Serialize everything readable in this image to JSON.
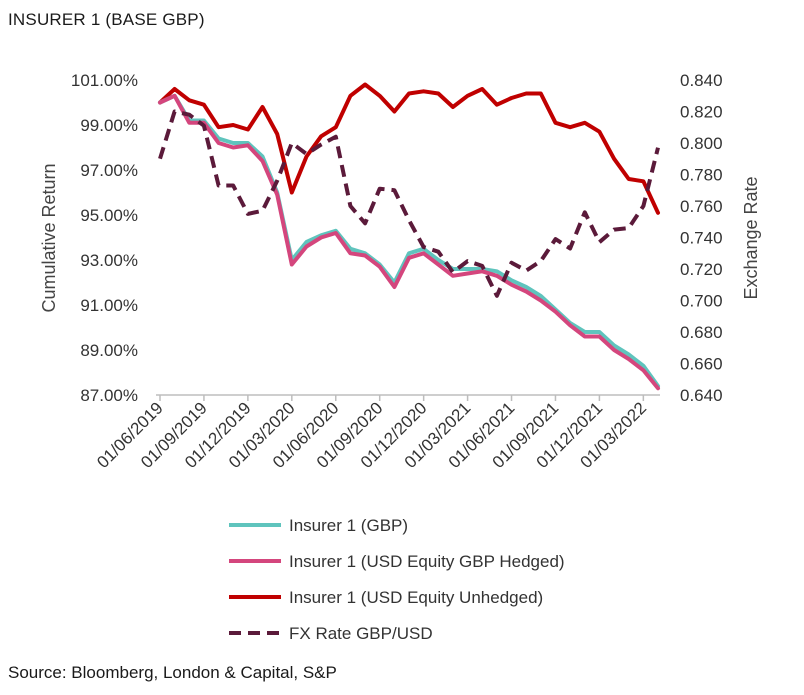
{
  "title": "INSURER 1 (BASE GBP)",
  "source": "Source: Bloomberg, London & Capital, S&P",
  "chart_data": {
    "type": "line",
    "left_axis": {
      "label": "Cumulative Return",
      "range": [
        87.0,
        101.0
      ],
      "ticks": [
        "101.00%",
        "99.00%",
        "97.00%",
        "95.00%",
        "93.00%",
        "91.00%",
        "89.00%",
        "87.00%"
      ]
    },
    "right_axis": {
      "label": "Exchange Rate",
      "range": [
        0.64,
        0.84
      ],
      "ticks": [
        "0.840",
        "0.820",
        "0.800",
        "0.780",
        "0.760",
        "0.740",
        "0.720",
        "0.700",
        "0.680",
        "0.660",
        "0.640"
      ]
    },
    "x_tick_labels": [
      "01/06/2019",
      "01/09/2019",
      "01/12/2019",
      "01/03/2020",
      "01/06/2020",
      "01/09/2020",
      "01/12/2020",
      "01/03/2021",
      "01/06/2021",
      "01/09/2021",
      "01/12/2021",
      "01/03/2022"
    ],
    "x_periods": 35,
    "series": [
      {
        "name": "Insurer 1 (GBP)",
        "axis": "left",
        "color": "#5fc4bd",
        "dash": false,
        "values": [
          100.0,
          100.3,
          99.2,
          99.2,
          98.4,
          98.2,
          98.2,
          97.6,
          96.0,
          93.0,
          93.8,
          94.1,
          94.3,
          93.5,
          93.3,
          92.8,
          92.0,
          93.3,
          93.5,
          93.0,
          92.6,
          92.6,
          92.6,
          92.5,
          92.1,
          91.8,
          91.4,
          90.8,
          90.2,
          89.8,
          89.8,
          89.2,
          88.8,
          88.3,
          87.4
        ]
      },
      {
        "name": "Insurer 1 (USD Equity GBP Hedged)",
        "axis": "left",
        "color": "#d4467d",
        "dash": false,
        "values": [
          100.0,
          100.3,
          99.1,
          99.1,
          98.2,
          98.0,
          98.1,
          97.4,
          95.9,
          92.8,
          93.6,
          94.0,
          94.2,
          93.3,
          93.2,
          92.7,
          91.8,
          93.1,
          93.3,
          92.8,
          92.3,
          92.4,
          92.5,
          92.3,
          91.9,
          91.6,
          91.2,
          90.7,
          90.1,
          89.6,
          89.6,
          89.0,
          88.6,
          88.1,
          87.3
        ]
      },
      {
        "name": "Insurer 1 (USD Equity Unhedged)",
        "axis": "left",
        "color": "#c00000",
        "dash": false,
        "values": [
          100.0,
          100.6,
          100.1,
          99.9,
          98.9,
          99.0,
          98.8,
          99.8,
          98.6,
          96.0,
          97.6,
          98.5,
          98.9,
          100.3,
          100.8,
          100.3,
          99.6,
          100.4,
          100.5,
          100.4,
          99.8,
          100.3,
          100.6,
          99.9,
          100.2,
          100.4,
          100.4,
          99.1,
          98.9,
          99.1,
          98.7,
          97.5,
          96.6,
          96.5,
          95.1
        ]
      },
      {
        "name": "FX Rate GBP/USD",
        "axis": "right",
        "color": "#5b1a3a",
        "dash": true,
        "values": [
          0.79,
          0.82,
          0.818,
          0.811,
          0.773,
          0.773,
          0.755,
          0.757,
          0.776,
          0.8,
          0.793,
          0.799,
          0.804,
          0.76,
          0.749,
          0.771,
          0.77,
          0.751,
          0.734,
          0.731,
          0.718,
          0.725,
          0.722,
          0.703,
          0.724,
          0.719,
          0.725,
          0.739,
          0.733,
          0.756,
          0.737,
          0.745,
          0.746,
          0.76,
          0.797
        ]
      }
    ],
    "legend_placement": "bottom"
  }
}
